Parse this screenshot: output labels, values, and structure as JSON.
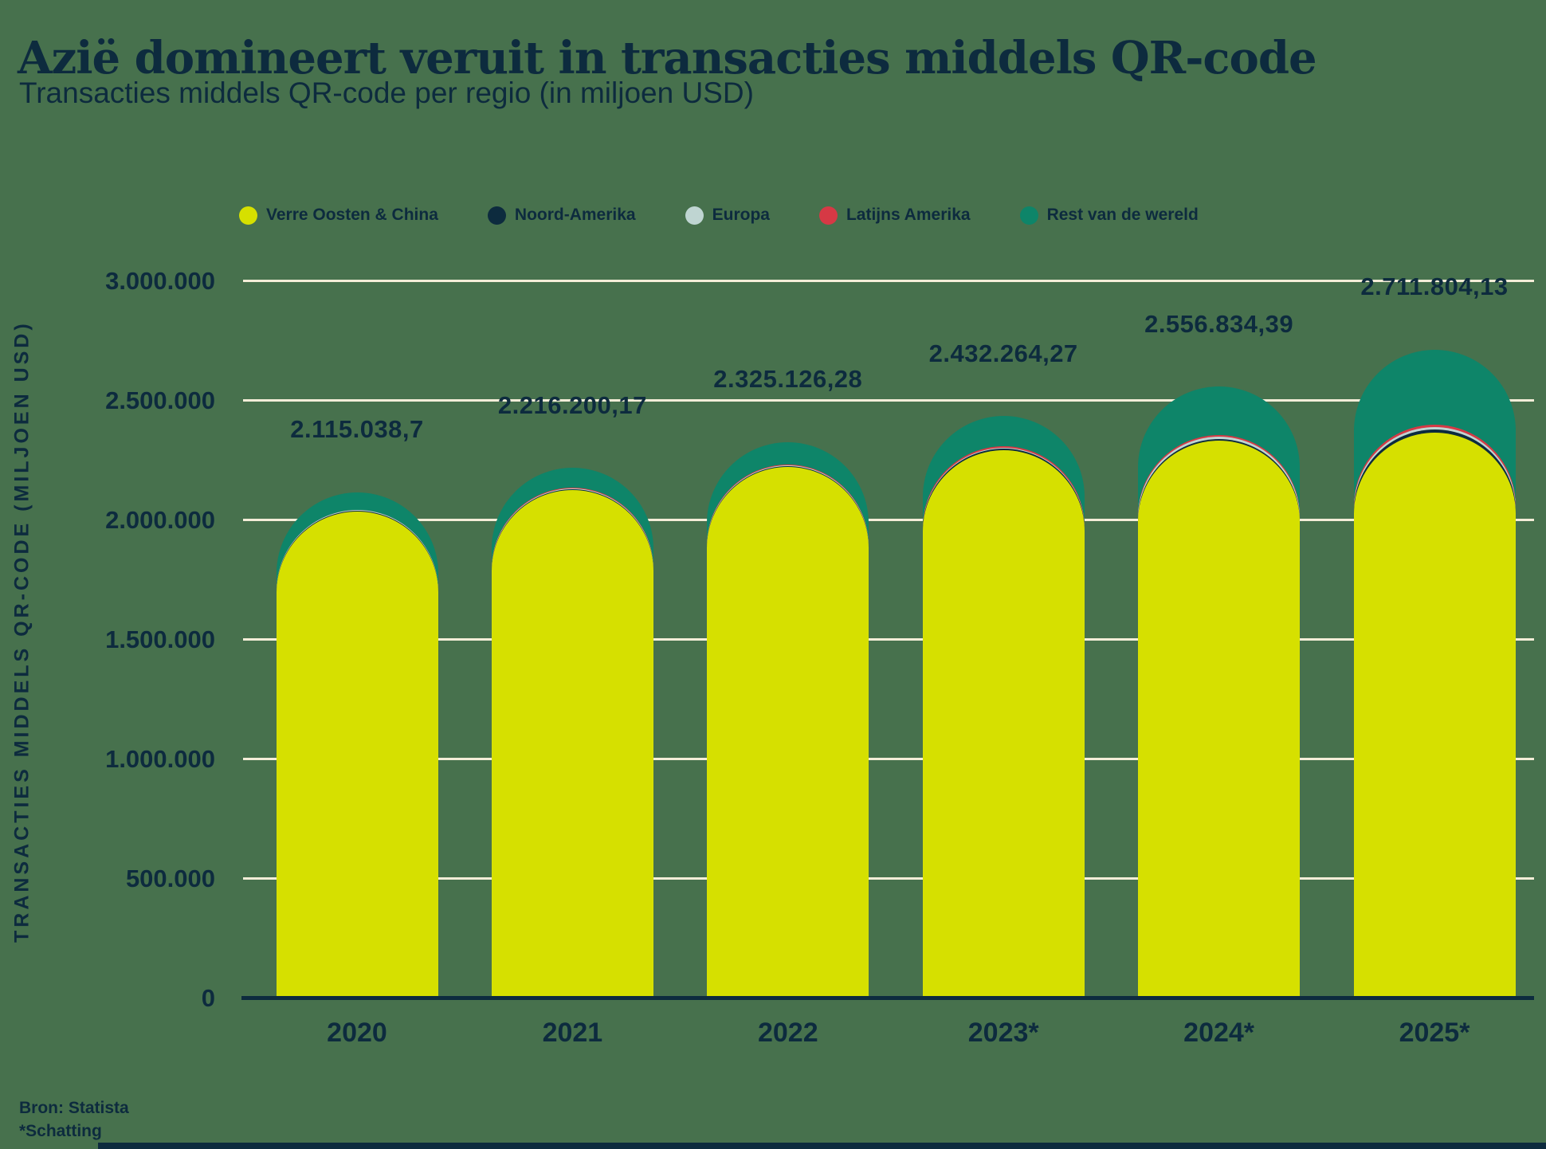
{
  "title": "Azië domineert veruit in transacties middels QR-code",
  "subtitle": "Transacties middels QR-code per regio (in miljoen USD)",
  "source": {
    "line1": "Bron: Statista",
    "line2": "*Schatting"
  },
  "colors": {
    "background": "#47714D",
    "text": "#0D2B3E",
    "gridline": "#F4EDD8",
    "axis_line": "#0D2B3E",
    "far_east_china": "#D6E000",
    "north_america": "#0D2B3E",
    "europe": "#BFD5D2",
    "latin_america": "#D63945",
    "rest_of_world": "#0E8569"
  },
  "legend": {
    "position": "top",
    "items": [
      {
        "label": "Verre Oosten & China",
        "color": "#D6E000"
      },
      {
        "label": "Noord-Amerika",
        "color": "#0D2B3E"
      },
      {
        "label": "Europa",
        "color": "#BFD5D2"
      },
      {
        "label": "Latijns Amerika",
        "color": "#D63945"
      },
      {
        "label": "Rest van de wereld",
        "color": "#0E8569"
      }
    ]
  },
  "y_axis": {
    "title": "TRANSACTIES MIDDELS QR-CODE (MILJOEN USD)",
    "ticks": [
      "3.000.000",
      "2.500.000",
      "2.000.000",
      "1.500.000",
      "1.000.000",
      "500.000",
      "0"
    ],
    "max": 3000000
  },
  "chart_data": {
    "type": "bar",
    "stacked": true,
    "rounded_top": true,
    "title": "Transacties middels QR-code per regio (in miljoen USD)",
    "xlabel": "",
    "ylabel": "TRANSACTIES MIDDELS QR-CODE (MILJOEN USD)",
    "ylim": [
      0,
      3000000
    ],
    "grid": true,
    "legend_position": "top",
    "categories": [
      "2020",
      "2021",
      "2022",
      "2023*",
      "2024*",
      "2025*"
    ],
    "series": [
      {
        "name": "Verre Oosten & China",
        "color": "#D6E000",
        "values": [
          2035000,
          2125000,
          2220000,
          2290000,
          2330000,
          2365000
        ]
      },
      {
        "name": "Noord-Amerika",
        "color": "#0D2B3E",
        "values": [
          2500,
          3200,
          4200,
          6000,
          8500,
          12000
        ]
      },
      {
        "name": "Europa",
        "color": "#BFD5D2",
        "values": [
          2000,
          2600,
          3400,
          4800,
          7000,
          10000
        ]
      },
      {
        "name": "Latijns Amerika",
        "color": "#D63945",
        "values": [
          1800,
          2400,
          3200,
          4500,
          6500,
          9500
        ]
      },
      {
        "name": "Rest van de wereld",
        "color": "#0E8569",
        "values": [
          73738.7,
          83000.17,
          94326.28,
          126964.27,
          204834.39,
          315304.13
        ]
      }
    ],
    "totals": [
      2115038.7,
      2216200.17,
      2325126.28,
      2432264.27,
      2556834.39,
      2711804.13
    ],
    "total_labels": [
      "2.115.038,7",
      "2.216.200,17",
      "2.325.126,28",
      "2.432.264,27",
      "2.556.834,39",
      "2.711.804,13"
    ],
    "footnote": "*Schatting",
    "source": "Bron: Statista"
  }
}
